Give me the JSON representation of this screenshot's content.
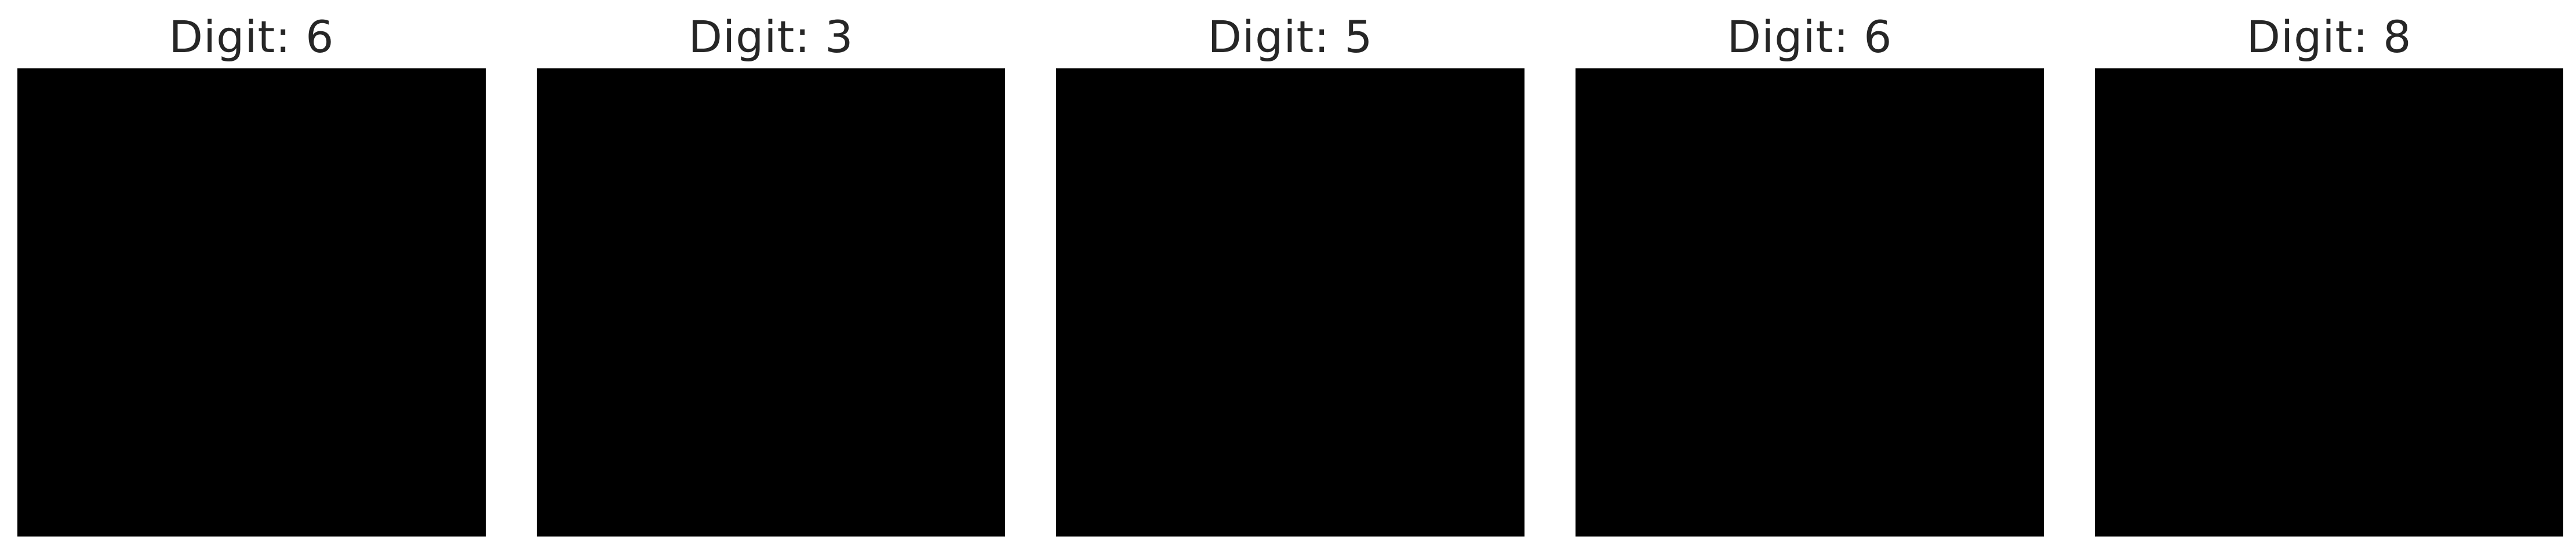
{
  "panels": [
    {
      "title": "Digit: 6",
      "pixels": [
        [
          0,
          0,
          0,
          0,
          0,
          0,
          0,
          0,
          0,
          0,
          0,
          0,
          0,
          0,
          0,
          0
        ],
        [
          0,
          0,
          0,
          0,
          0,
          0,
          0,
          0,
          0,
          0,
          0,
          0,
          0,
          0,
          0,
          0
        ],
        [
          0,
          0,
          0,
          0,
          0,
          0,
          0,
          0,
          0,
          0,
          0,
          0,
          0,
          0,
          0,
          0
        ],
        [
          0,
          0,
          0,
          0,
          0,
          0,
          0,
          0,
          0,
          0,
          0,
          0,
          0,
          0,
          0,
          0
        ],
        [
          0,
          0,
          0,
          0,
          0,
          0,
          0,
          0,
          0,
          0,
          0,
          0,
          0,
          0,
          0,
          0
        ],
        [
          0,
          0,
          0,
          0,
          0,
          0,
          0,
          0,
          0,
          0,
          0,
          0,
          0,
          0,
          0,
          0
        ],
        [
          0,
          0,
          0,
          0,
          0,
          0,
          0,
          0,
          0,
          0,
          0,
          0,
          0,
          0,
          0,
          0
        ],
        [
          0,
          0,
          0,
          0,
          0,
          0,
          0,
          0,
          0,
          0,
          0,
          0,
          0,
          0,
          0,
          0
        ],
        [
          0,
          0,
          0,
          0,
          0,
          0,
          0,
          0,
          0,
          0,
          0,
          0,
          0,
          0,
          0,
          0
        ],
        [
          0,
          0,
          0,
          0,
          0,
          0,
          0,
          0,
          0,
          0,
          0,
          0,
          0,
          0,
          0,
          0
        ],
        [
          0,
          0,
          0,
          0,
          0,
          0,
          0,
          0,
          0,
          0,
          0,
          0,
          0,
          0,
          0,
          0
        ],
        [
          0,
          0,
          0,
          0,
          0,
          0,
          0,
          0,
          0,
          0,
          0,
          0,
          0,
          0,
          0,
          0
        ],
        [
          0,
          0,
          0,
          0,
          0,
          0,
          0,
          0,
          0,
          0,
          0,
          0,
          0,
          0,
          0,
          0
        ],
        [
          0,
          0,
          0,
          0,
          0,
          0,
          0,
          0,
          0,
          0,
          0,
          0,
          0,
          0,
          0,
          0
        ],
        [
          0,
          0,
          0,
          0,
          0,
          0,
          0,
          0,
          0,
          0,
          0,
          0,
          0,
          0,
          0,
          0
        ],
        [
          0,
          0,
          0,
          0,
          0,
          0,
          0,
          0,
          0,
          0,
          0,
          0,
          0,
          0,
          0,
          0
        ]
      ]
    },
    {
      "title": "Digit: 3",
      "pixels": [
        [
          0,
          0,
          0,
          0,
          0,
          0,
          0,
          0,
          0,
          0,
          0,
          0,
          0,
          0,
          0,
          0
        ],
        [
          0,
          0,
          0,
          0,
          0,
          0,
          0,
          0,
          0,
          0,
          0,
          0,
          0,
          0,
          0,
          0
        ],
        [
          0,
          0,
          0,
          0,
          0,
          0,
          0,
          0,
          0,
          0,
          0,
          0,
          0,
          0,
          0,
          0
        ],
        [
          0,
          0,
          0,
          0,
          0,
          0,
          0,
          0,
          0,
          0,
          0,
          0,
          0,
          0,
          0,
          0
        ],
        [
          0,
          0,
          0,
          0,
          0,
          0,
          0,
          0,
          0,
          0,
          0,
          0,
          0,
          0,
          0,
          0
        ],
        [
          0,
          0,
          0,
          0,
          0,
          0,
          0,
          0,
          0,
          0,
          0,
          0,
          0,
          0,
          0,
          0
        ],
        [
          0,
          0,
          0,
          0,
          0,
          0,
          0,
          0,
          0,
          0,
          0,
          0,
          0,
          0,
          0,
          0
        ],
        [
          0,
          0,
          0,
          0,
          0,
          0,
          0,
          0,
          0,
          0,
          0,
          0,
          0,
          0,
          0,
          0
        ],
        [
          0,
          0,
          0,
          0,
          0,
          0,
          0,
          0,
          0,
          0,
          0,
          0,
          0,
          0,
          0,
          0
        ],
        [
          0,
          0,
          0,
          0,
          0,
          0,
          0,
          0,
          0,
          0,
          0,
          0,
          0,
          0,
          0,
          0
        ],
        [
          0,
          0,
          0,
          0,
          0,
          0,
          0,
          0,
          0,
          0,
          0,
          0,
          0,
          0,
          0,
          0
        ],
        [
          0,
          0,
          0,
          0,
          0,
          0,
          0,
          0,
          0,
          0,
          0,
          0,
          0,
          0,
          0,
          0
        ],
        [
          0,
          0,
          0,
          0,
          0,
          0,
          0,
          0,
          0,
          0,
          0,
          0,
          0,
          0,
          0,
          0
        ],
        [
          0,
          0,
          0,
          0,
          0,
          0,
          0,
          0,
          0,
          0,
          0,
          0,
          0,
          0,
          0,
          0
        ],
        [
          0,
          0,
          0,
          0,
          0,
          0,
          0,
          0,
          0,
          0,
          0,
          0,
          0,
          0,
          0,
          0
        ],
        [
          0,
          0,
          0,
          0,
          0,
          0,
          0,
          0,
          0,
          0,
          0,
          0,
          0,
          0,
          0,
          0
        ]
      ]
    },
    {
      "title": "Digit: 5",
      "pixels": [
        [
          0,
          0,
          0,
          0,
          0,
          0,
          0,
          0,
          0,
          0,
          0,
          0,
          0,
          0,
          0,
          0
        ],
        [
          0,
          0,
          0,
          0,
          0,
          0,
          0,
          0,
          0,
          0,
          0,
          0,
          0,
          0,
          0,
          0
        ],
        [
          0,
          0,
          0,
          0,
          0,
          0,
          0,
          0,
          0,
          0,
          0,
          0,
          0,
          0,
          0,
          0
        ],
        [
          0,
          0,
          0,
          0,
          0,
          0,
          0,
          0,
          0,
          0,
          0,
          0,
          0,
          0,
          0,
          0
        ],
        [
          0,
          0,
          0,
          0,
          0,
          0,
          0,
          0,
          0,
          0,
          0,
          0,
          0,
          0,
          0,
          0
        ],
        [
          0,
          0,
          0,
          0,
          0,
          0,
          0,
          0,
          0,
          0,
          0,
          0,
          0,
          0,
          0,
          0
        ],
        [
          0,
          0,
          0,
          0,
          0,
          0,
          0,
          0,
          0,
          0,
          0,
          0,
          0,
          0,
          0,
          0
        ],
        [
          0,
          0,
          0,
          0,
          0,
          0,
          0,
          0,
          0,
          0,
          0,
          0,
          0,
          0,
          0,
          0
        ],
        [
          0,
          0,
          0,
          0,
          0,
          0,
          0,
          0,
          0,
          0,
          0,
          0,
          0,
          0,
          0,
          0
        ],
        [
          0,
          0,
          0,
          0,
          0,
          0,
          0,
          0,
          0,
          0,
          0,
          0,
          0,
          0,
          0,
          0
        ],
        [
          0,
          0,
          0,
          0,
          0,
          0,
          0,
          0,
          0,
          0,
          0,
          0,
          0,
          0,
          0,
          0
        ],
        [
          0,
          0,
          0,
          0,
          0,
          0,
          0,
          0,
          0,
          0,
          0,
          0,
          0,
          0,
          0,
          0
        ],
        [
          0,
          0,
          0,
          0,
          0,
          0,
          0,
          0,
          0,
          0,
          0,
          0,
          0,
          0,
          0,
          0
        ],
        [
          0,
          0,
          0,
          0,
          0,
          0,
          0,
          0,
          0,
          0,
          0,
          0,
          0,
          0,
          0,
          0
        ],
        [
          0,
          0,
          0,
          0,
          0,
          0,
          0,
          0,
          0,
          0,
          0,
          0,
          0,
          0,
          0,
          0
        ],
        [
          0,
          0,
          0,
          0,
          0,
          0,
          0,
          0,
          0,
          0,
          0,
          0,
          0,
          0,
          0,
          0
        ]
      ]
    },
    {
      "title": "Digit: 6",
      "pixels": [
        [
          0,
          0,
          0,
          0,
          0,
          0,
          0,
          0,
          0,
          0,
          0,
          0,
          0,
          0,
          0,
          0
        ],
        [
          0,
          0,
          0,
          0,
          0,
          0,
          0,
          0,
          0,
          0,
          0,
          0,
          0,
          0,
          0,
          0
        ],
        [
          0,
          0,
          0,
          0,
          0,
          0,
          0,
          0,
          0,
          0,
          0,
          0,
          0,
          0,
          0,
          0
        ],
        [
          0,
          0,
          0,
          0,
          0,
          0,
          0,
          0,
          0,
          0,
          0,
          0,
          0,
          0,
          0,
          0
        ],
        [
          0,
          0,
          0,
          0,
          0,
          0,
          0,
          0,
          0,
          0,
          0,
          0,
          0,
          0,
          0,
          0
        ],
        [
          0,
          0,
          0,
          0,
          0,
          0,
          0,
          0,
          0,
          0,
          0,
          0,
          0,
          0,
          0,
          0
        ],
        [
          0,
          0,
          0,
          0,
          0,
          0,
          0,
          0,
          0,
          0,
          0,
          0,
          0,
          0,
          0,
          0
        ],
        [
          0,
          0,
          0,
          0,
          0,
          0,
          0,
          0,
          0,
          0,
          0,
          0,
          0,
          0,
          0,
          0
        ],
        [
          0,
          0,
          0,
          0,
          0,
          0,
          0,
          0,
          0,
          0,
          0,
          0,
          0,
          0,
          0,
          0
        ],
        [
          0,
          0,
          0,
          0,
          0,
          0,
          0,
          0,
          0,
          0,
          0,
          0,
          0,
          0,
          0,
          0
        ],
        [
          0,
          0,
          0,
          0,
          0,
          0,
          0,
          0,
          0,
          0,
          0,
          0,
          0,
          0,
          0,
          0
        ],
        [
          0,
          0,
          0,
          0,
          0,
          0,
          0,
          0,
          0,
          0,
          0,
          0,
          0,
          0,
          0,
          0
        ],
        [
          0,
          0,
          0,
          0,
          0,
          0,
          0,
          0,
          0,
          0,
          0,
          0,
          0,
          0,
          0,
          0
        ],
        [
          0,
          0,
          0,
          0,
          0,
          0,
          0,
          0,
          0,
          0,
          0,
          0,
          0,
          0,
          0,
          0
        ],
        [
          0,
          0,
          0,
          0,
          0,
          0,
          0,
          0,
          0,
          0,
          0,
          0,
          0,
          0,
          0,
          0
        ],
        [
          0,
          0,
          0,
          0,
          0,
          0,
          0,
          0,
          0,
          0,
          0,
          0,
          0,
          0,
          0,
          0
        ]
      ]
    },
    {
      "title": "Digit: 8",
      "pixels": [
        [
          0,
          0,
          0,
          0,
          0,
          0,
          0,
          0,
          0,
          0,
          0,
          0,
          0,
          0,
          0,
          0
        ],
        [
          0,
          0,
          0,
          0,
          0,
          0,
          0,
          0,
          0,
          0,
          0,
          0,
          0,
          0,
          0,
          0
        ],
        [
          0,
          0,
          0,
          0,
          0,
          0,
          0,
          0,
          0,
          0,
          0,
          0,
          0,
          0,
          0,
          0
        ],
        [
          0,
          0,
          0,
          0,
          0,
          0,
          0,
          0,
          0,
          0,
          0,
          0,
          0,
          0,
          0,
          0
        ],
        [
          0,
          0,
          0,
          0,
          0,
          0,
          0,
          0,
          0,
          0,
          0,
          0,
          0,
          0,
          0,
          0
        ],
        [
          0,
          0,
          0,
          0,
          0,
          0,
          0,
          0,
          0,
          0,
          0,
          0,
          0,
          0,
          0,
          0
        ],
        [
          0,
          0,
          0,
          0,
          0,
          0,
          0,
          0,
          0,
          0,
          0,
          0,
          0,
          0,
          0,
          0
        ],
        [
          0,
          0,
          0,
          0,
          0,
          0,
          0,
          0,
          0,
          0,
          0,
          0,
          0,
          0,
          0,
          0
        ],
        [
          0,
          0,
          0,
          0,
          0,
          0,
          0,
          0,
          0,
          0,
          0,
          0,
          0,
          0,
          0,
          0
        ],
        [
          0,
          0,
          0,
          0,
          0,
          0,
          0,
          0,
          0,
          0,
          0,
          0,
          0,
          0,
          0,
          0
        ],
        [
          0,
          0,
          0,
          0,
          0,
          0,
          0,
          0,
          0,
          0,
          0,
          0,
          0,
          0,
          0,
          0
        ],
        [
          0,
          0,
          0,
          0,
          0,
          0,
          0,
          0,
          0,
          0,
          0,
          0,
          0,
          0,
          0,
          0
        ],
        [
          0,
          0,
          0,
          0,
          0,
          0,
          0,
          0,
          0,
          0,
          0,
          0,
          0,
          0,
          0,
          0
        ],
        [
          0,
          0,
          0,
          0,
          0,
          0,
          0,
          0,
          0,
          0,
          0,
          0,
          0,
          0,
          0,
          0
        ],
        [
          0,
          0,
          0,
          0,
          0,
          0,
          0,
          0,
          0,
          0,
          0,
          0,
          0,
          0,
          0,
          0
        ],
        [
          0,
          0,
          0,
          0,
          0,
          0,
          0,
          0,
          0,
          0,
          0,
          0,
          0,
          0,
          0,
          0
        ]
      ]
    }
  ]
}
